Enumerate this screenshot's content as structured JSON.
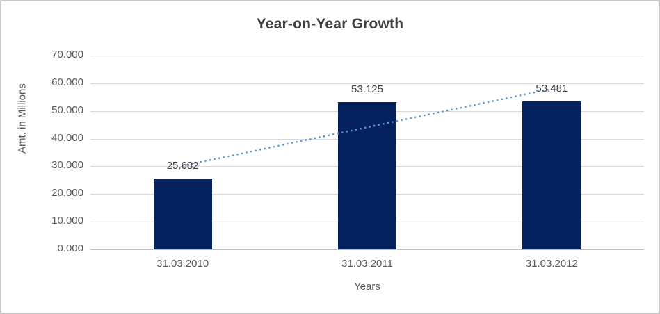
{
  "chart_data": {
    "type": "bar",
    "title": "Year-on-Year Growth",
    "xlabel": "Years",
    "ylabel": "Amt. in Millions",
    "categories": [
      "31.03.2010",
      "31.03.2011",
      "31.03.2012"
    ],
    "values": [
      25.682,
      53.125,
      53.481
    ],
    "data_labels": [
      "25.682",
      "53.125",
      "53.481"
    ],
    "ylim": [
      0,
      70
    ],
    "ytick_step": 10,
    "ytick_labels": [
      "0.000",
      "10.000",
      "20.000",
      "30.000",
      "40.000",
      "50.000",
      "60.000",
      "70.000"
    ],
    "grid": true,
    "legend": false,
    "trendline": {
      "type": "linear",
      "style": "dotted"
    },
    "colors": {
      "bar": "#05215e",
      "trendline": "#5b9bd5",
      "gridline": "#d9d9d9",
      "axis_line": "#bfbfbf",
      "axis_text": "#595959",
      "label_text": "#404040",
      "title_text": "#3f3f3f",
      "background": "#ffffff",
      "border": "#c9c9c9"
    }
  }
}
